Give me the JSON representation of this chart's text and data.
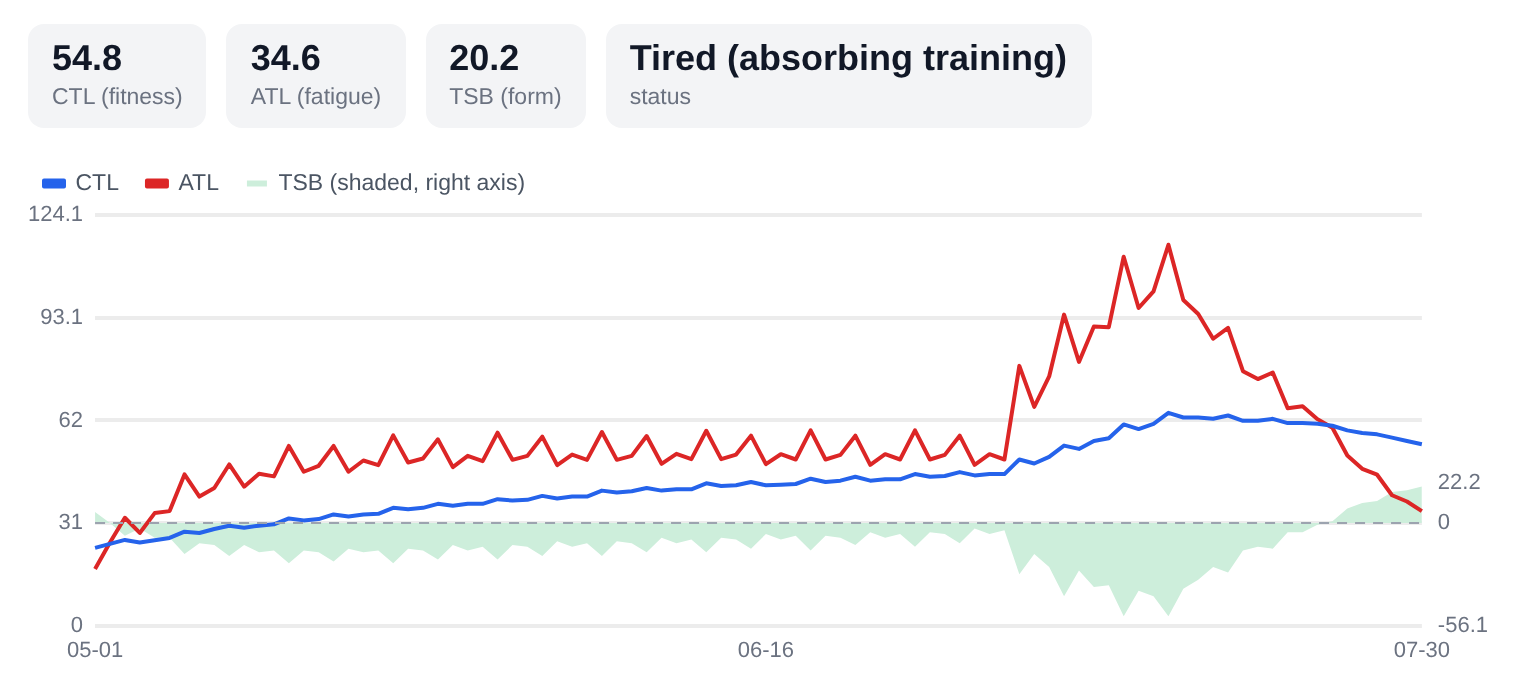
{
  "chart_data": {
    "type": "line",
    "annotations": [
      "54.8",
      "CTL (fitness)",
      "34.6",
      "ATL (fatigue)",
      "20.2",
      "TSB (form)",
      "Tired (absorbing training)",
      "status"
    ],
    "categories": [
      "05-01",
      null,
      null,
      null,
      null,
      null,
      null,
      null,
      null,
      null,
      null,
      null,
      null,
      null,
      null,
      null,
      null,
      null,
      null,
      null,
      null,
      null,
      null,
      null,
      null,
      null,
      null,
      null,
      null,
      null,
      null,
      null,
      null,
      null,
      null,
      null,
      null,
      null,
      null,
      null,
      null,
      null,
      null,
      null,
      null,
      "06-16",
      null,
      null,
      null,
      null,
      null,
      null,
      null,
      null,
      null,
      null,
      null,
      null,
      null,
      null,
      null,
      null,
      null,
      null,
      null,
      null,
      null,
      null,
      null,
      null,
      null,
      null,
      null,
      null,
      null,
      null,
      null,
      null,
      null,
      null,
      null,
      null,
      null,
      null,
      null,
      null,
      null,
      null,
      null,
      "07-30"
    ],
    "series": [
      {
        "name": "CTL",
        "color": "#2563eb",
        "values": [
          23.5,
          24.7,
          25.9,
          25.1,
          25.8,
          26.5,
          28.4,
          28.0,
          29.2,
          30.2,
          29.6,
          30.2,
          30.6,
          32.4,
          31.8,
          32.2,
          33.6,
          33.0,
          33.6,
          33.8,
          35.6,
          35.2,
          35.6,
          36.8,
          36.2,
          36.8,
          36.8,
          38.2,
          37.8,
          38.0,
          39.2,
          38.4,
          39.0,
          39.0,
          40.8,
          40.2,
          40.6,
          41.6,
          40.8,
          41.2,
          41.2,
          43.0,
          42.2,
          42.4,
          43.4,
          42.4,
          42.6,
          42.8,
          44.4,
          43.4,
          43.8,
          45.0,
          43.8,
          44.2,
          44.2,
          45.8,
          45.0,
          45.2,
          46.4,
          45.4,
          45.8,
          45.8,
          50.2,
          49.0,
          51.0,
          54.4,
          53.4,
          55.8,
          56.6,
          60.8,
          59.4,
          61.0,
          64.3,
          62.9,
          62.9,
          62.5,
          63.5,
          61.9,
          61.9,
          62.5,
          61.2,
          61.2,
          61.0,
          60.4,
          59.0,
          58.2,
          57.8,
          56.8,
          55.8,
          54.8
        ]
      },
      {
        "name": "ATL",
        "color": "#dc2626",
        "values": [
          17.1,
          25.1,
          32.6,
          28.0,
          34.0,
          34.6,
          45.7,
          39.0,
          41.6,
          48.7,
          42.0,
          45.9,
          45.1,
          54.3,
          46.5,
          48.3,
          54.3,
          46.5,
          49.9,
          48.5,
          57.5,
          49.3,
          50.5,
          56.3,
          47.9,
          51.3,
          49.7,
          58.3,
          50.1,
          51.3,
          57.1,
          48.5,
          51.7,
          50.1,
          58.5,
          50.1,
          51.3,
          57.3,
          48.9,
          51.9,
          50.3,
          58.9,
          50.3,
          51.7,
          57.4,
          48.8,
          51.8,
          50.2,
          59.0,
          50.2,
          51.6,
          57.4,
          48.6,
          51.8,
          50.2,
          59.0,
          50.2,
          51.6,
          57.4,
          48.6,
          51.8,
          50.2,
          78.5,
          66.1,
          75.3,
          94.0,
          79.7,
          90.4,
          90.2,
          111.5,
          96.0,
          101.0,
          115.1,
          98.4,
          94.2,
          86.7,
          90.0,
          76.9,
          74.5,
          76.5,
          65.7,
          66.3,
          62.4,
          59.8,
          51.4,
          47.4,
          45.6,
          39.4,
          37.5,
          34.6
        ]
      },
      {
        "name": "TSB (shaded, right axis)",
        "type": "area",
        "axis": "y2",
        "color": "#cdeedb",
        "values": [
          6,
          0,
          -7,
          -3,
          -8,
          -8,
          -17,
          -11,
          -12,
          -18,
          -12,
          -16,
          -15,
          -22,
          -15,
          -16,
          -21,
          -14,
          -16,
          -15,
          -22,
          -14,
          -15,
          -20,
          -12,
          -15,
          -13,
          -20,
          -12,
          -13,
          -18,
          -10,
          -13,
          -11,
          -18,
          -10,
          -11,
          -16,
          -8,
          -11,
          -9,
          -16,
          -8,
          -9,
          -14,
          -6,
          -9,
          -7,
          -15,
          -7,
          -8,
          -12,
          -5,
          -8,
          -6,
          -13,
          -5,
          -6,
          -11,
          -3,
          -6,
          -4,
          -28,
          -17,
          -24,
          -40,
          -26,
          -35,
          -34,
          -51,
          -37,
          -40,
          -51,
          -36,
          -31,
          -24,
          -27,
          -15,
          -13,
          -14,
          -5,
          -5,
          -1,
          1,
          8,
          11,
          12,
          17,
          18,
          20
        ]
      }
    ],
    "ylim": [
      0,
      124.1
    ],
    "yticks": [
      0,
      31,
      62,
      93.1,
      124.1
    ],
    "y2lim": [
      -56.1,
      168.5
    ],
    "y2ticks": [
      -56.1,
      0,
      22.2
    ],
    "ref_lines": [
      {
        "axis": "y2",
        "value": 0,
        "color": "#9ca3af",
        "line_style": "dashed"
      }
    ],
    "grid": "y",
    "legend": "top left",
    "marker": "none",
    "line_style": "solid"
  }
}
